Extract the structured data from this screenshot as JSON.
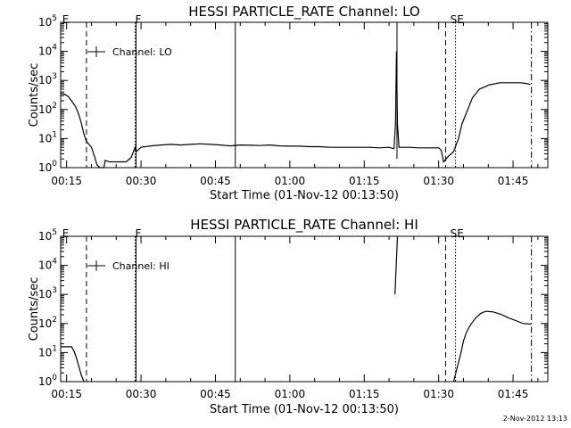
{
  "chart_data": [
    {
      "type": "line",
      "title": "HESSI PARTICLE_RATE Channel: LO",
      "xlabel": "Start Time (01-Nov-12 00:13:50)",
      "ylabel": "Counts/sec",
      "y_scale": "log",
      "ylim_exp": [
        0,
        5
      ],
      "xlim_min": [
        13.8,
        112
      ],
      "x_ticks": [
        {
          "min": 15,
          "label": "00:15"
        },
        {
          "min": 30,
          "label": "00:30"
        },
        {
          "min": 45,
          "label": "00:45"
        },
        {
          "min": 60,
          "label": "01:00"
        },
        {
          "min": 75,
          "label": "01:15"
        },
        {
          "min": 90,
          "label": "01:30"
        },
        {
          "min": 105,
          "label": "01:45"
        }
      ],
      "y_ticks": [
        0,
        1,
        2,
        3,
        4,
        5
      ],
      "legend": {
        "label": "Channel: LO",
        "placement": "top-left"
      },
      "markers": [
        {
          "min": 14.3,
          "label": "E",
          "style": "none"
        },
        {
          "min": 19.0,
          "label": "",
          "style": "dashed"
        },
        {
          "min": 28.8,
          "label": "",
          "style": "dotted"
        },
        {
          "min": 29.0,
          "label": "F",
          "style": "solid"
        },
        {
          "min": 49.0,
          "label": "",
          "style": "solid"
        },
        {
          "min": 91.4,
          "label": "",
          "style": "dashed"
        },
        {
          "min": 93.4,
          "label": "",
          "style": "dotted"
        },
        {
          "min": 92.5,
          "label": "SE",
          "style": "none"
        },
        {
          "min": 108.7,
          "label": "",
          "style": "dashdot"
        }
      ],
      "vertical_lines": [
        {
          "min": 81.6,
          "exp": [
            0.3,
            5.0
          ]
        }
      ],
      "series": [
        {
          "x": [
            13.8,
            14.5,
            15.3,
            16.0,
            16.8,
            17.5,
            18.0,
            18.5,
            19.0,
            19.5,
            20.0,
            20.6,
            21.1,
            21.7,
            22.5,
            22.8,
            23.6,
            24.0,
            25.0,
            26.0,
            27.0,
            28.0,
            28.8,
            29.0,
            30.0,
            32.0,
            34.0,
            36.0,
            38.0,
            40.0,
            42.0,
            44.0,
            46.0,
            48.0,
            50.0,
            52.0,
            54.0,
            56.0,
            58.0,
            60.0,
            62.0,
            64.0,
            66.0,
            68.0,
            70.0,
            72.0,
            74.0,
            76.0,
            78.0,
            80.0,
            81.0,
            81.3,
            81.5,
            81.7,
            82.0,
            83.0,
            84.0,
            86.0,
            88.0,
            90.0,
            90.5,
            91.0,
            91.5,
            92.0,
            93.0,
            94.0,
            94.7,
            95.4,
            96.1,
            96.8,
            97.5,
            98.2,
            98.9,
            99.6,
            100.2,
            101.0,
            101.7,
            102.4,
            103.5,
            105.0,
            106.5,
            107.5,
            108.0,
            108.5
          ],
          "y_exp": [
            2.55,
            2.53,
            2.45,
            2.3,
            2.1,
            1.8,
            1.5,
            1.15,
            0.9,
            0.8,
            0.7,
            0.4,
            0.1,
            0.0,
            0.0,
            0.25,
            0.2,
            0.2,
            0.2,
            0.2,
            0.2,
            0.35,
            0.7,
            0.55,
            0.7,
            0.75,
            0.78,
            0.8,
            0.78,
            0.8,
            0.82,
            0.8,
            0.78,
            0.75,
            0.78,
            0.77,
            0.76,
            0.78,
            0.75,
            0.74,
            0.74,
            0.72,
            0.72,
            0.7,
            0.7,
            0.7,
            0.7,
            0.7,
            0.68,
            0.7,
            0.65,
            1.5,
            4.0,
            1.5,
            0.7,
            0.7,
            0.7,
            0.68,
            0.68,
            0.68,
            0.6,
            0.2,
            0.3,
            0.4,
            0.55,
            1.0,
            1.5,
            1.8,
            2.1,
            2.4,
            2.55,
            2.7,
            2.75,
            2.8,
            2.85,
            2.87,
            2.9,
            2.92,
            2.92,
            2.92,
            2.92,
            2.9,
            2.88,
            2.86
          ]
        }
      ]
    },
    {
      "type": "line",
      "title": "HESSI PARTICLE_RATE Channel: HI",
      "xlabel": "Start Time (01-Nov-12 00:13:50)",
      "ylabel": "Counts/sec",
      "y_scale": "log",
      "ylim_exp": [
        0,
        5
      ],
      "xlim_min": [
        13.8,
        112
      ],
      "x_ticks": [
        {
          "min": 15,
          "label": "00:15"
        },
        {
          "min": 30,
          "label": "00:30"
        },
        {
          "min": 45,
          "label": "00:45"
        },
        {
          "min": 60,
          "label": "01:00"
        },
        {
          "min": 75,
          "label": "01:15"
        },
        {
          "min": 90,
          "label": "01:30"
        },
        {
          "min": 105,
          "label": "01:45"
        }
      ],
      "y_ticks": [
        0,
        1,
        2,
        3,
        4,
        5
      ],
      "legend": {
        "label": "Channel: HI",
        "placement": "top-left"
      },
      "markers": [
        {
          "min": 14.3,
          "label": "E",
          "style": "none"
        },
        {
          "min": 19.0,
          "label": "",
          "style": "dashed"
        },
        {
          "min": 28.8,
          "label": "",
          "style": "dotted"
        },
        {
          "min": 29.0,
          "label": "F",
          "style": "solid"
        },
        {
          "min": 49.0,
          "label": "",
          "style": "solid"
        },
        {
          "min": 91.4,
          "label": "",
          "style": "dashed"
        },
        {
          "min": 93.4,
          "label": "",
          "style": "dotted"
        },
        {
          "min": 92.5,
          "label": "SE",
          "style": "none"
        },
        {
          "min": 108.7,
          "label": "",
          "style": "dashdot"
        }
      ],
      "vertical_lines": [],
      "series": [
        {
          "x": [
            13.8,
            15.0,
            16.0,
            16.5,
            17.0,
            17.5,
            18.0,
            18.5
          ],
          "y_exp": [
            1.2,
            1.2,
            1.2,
            1.05,
            0.8,
            0.5,
            0.2,
            0.0
          ]
        },
        {
          "x": [
            81.2,
            81.7
          ],
          "y_exp": [
            3.0,
            5.0
          ]
        },
        {
          "x": [
            93.0,
            94.5,
            95.0,
            95.6,
            96.4,
            97.5,
            98.5,
            99.5,
            101.0,
            102.5,
            104.0,
            105.5,
            107.0,
            108.6
          ],
          "y_exp": [
            0.0,
            1.0,
            1.4,
            1.7,
            1.95,
            2.2,
            2.35,
            2.42,
            2.4,
            2.32,
            2.2,
            2.1,
            2.0,
            1.98
          ]
        }
      ]
    }
  ],
  "footer": {
    "timestamp": "2-Nov-2012 13:13"
  }
}
